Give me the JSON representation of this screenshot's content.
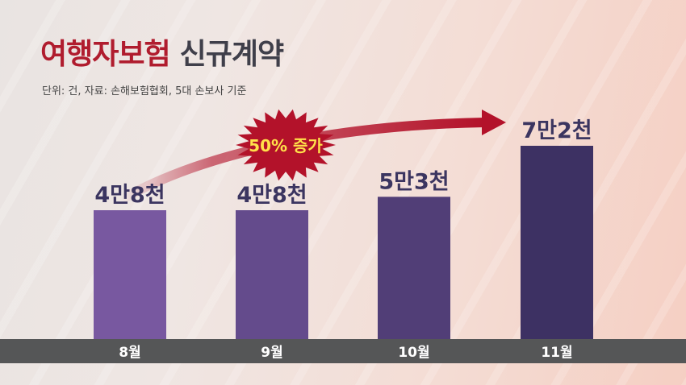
{
  "title_red": "여행자보험",
  "title_dark": "신규계약",
  "subtitle": "단위: 건, 자료: 손해보험협회, 5대 손보사 기준",
  "annotation": "50% 증가",
  "colors": {
    "title_red": "#b01c2e",
    "bar_light": "#7858a0",
    "bar_dark": "#3d3163",
    "arrow": "#b3122a",
    "badge": "#b3122a",
    "badge_text": "#ffe14a",
    "axis_band": "#555657"
  },
  "chart_data": {
    "type": "bar",
    "title": "여행자보험 신규계약",
    "subtitle": "단위: 건, 자료: 손해보험협회, 5대 손보사 기준",
    "categories": [
      "8월",
      "9월",
      "10월",
      "11월"
    ],
    "values": [
      48000,
      48000,
      53000,
      72000
    ],
    "value_labels": [
      "4만8천",
      "4만8천",
      "5만3천",
      "7만2천"
    ],
    "annotation": "50% 증가",
    "grid": false,
    "legend": "none"
  }
}
